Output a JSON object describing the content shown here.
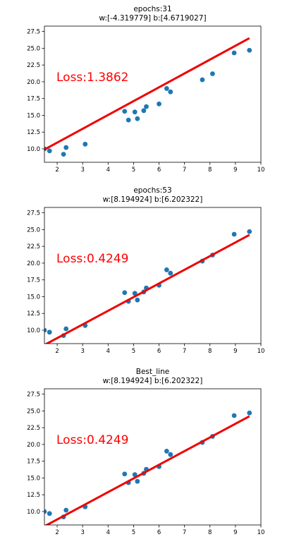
{
  "colors": {
    "points": "#1f77b4",
    "line": "#ee0000",
    "loss": "#ff0000",
    "axes": "#000000"
  },
  "chart_data": [
    {
      "type": "scatter",
      "title": "epochs:31",
      "subtitle": "w:[-4.319779] b:[4.6719027]",
      "loss_label": "Loss:1.3862",
      "xlim": [
        1.5,
        10
      ],
      "ylim": [
        8.0,
        28.3
      ],
      "xticks": [
        "2",
        "3",
        "4",
        "5",
        "6",
        "7",
        "8",
        "9",
        "10"
      ],
      "yticks": [
        "10.0",
        "12.5",
        "15.0",
        "17.5",
        "20.0",
        "22.5",
        "25.0",
        "27.5"
      ],
      "points": {
        "x": [
          1.5,
          1.7,
          2.25,
          2.35,
          3.1,
          4.65,
          4.8,
          5.05,
          5.15,
          5.4,
          5.5,
          6.0,
          6.3,
          6.45,
          7.7,
          8.1,
          8.95,
          9.55
        ],
        "y": [
          10.0,
          9.7,
          9.2,
          10.2,
          10.7,
          15.6,
          14.3,
          15.5,
          14.5,
          15.7,
          16.3,
          16.7,
          19.0,
          18.5,
          20.3,
          21.2,
          24.3,
          24.7
        ]
      },
      "line": {
        "x": [
          1.5,
          9.55
        ],
        "y": [
          9.9,
          26.5
        ]
      }
    },
    {
      "type": "scatter",
      "title": "epochs:53",
      "subtitle": "w:[8.194924] b:[6.202322]",
      "loss_label": "Loss:0.4249",
      "xlim": [
        1.5,
        10
      ],
      "ylim": [
        8.0,
        28.3
      ],
      "xticks": [
        "2",
        "3",
        "4",
        "5",
        "6",
        "7",
        "8",
        "9",
        "10"
      ],
      "yticks": [
        "10.0",
        "12.5",
        "15.0",
        "17.5",
        "20.0",
        "22.5",
        "25.0",
        "27.5"
      ],
      "points": {
        "x": [
          1.5,
          1.7,
          2.25,
          2.35,
          3.1,
          4.65,
          4.8,
          5.05,
          5.15,
          5.4,
          5.5,
          6.0,
          6.3,
          6.45,
          7.7,
          8.1,
          8.95,
          9.55
        ],
        "y": [
          10.0,
          9.7,
          9.2,
          10.2,
          10.7,
          15.6,
          14.3,
          15.5,
          14.5,
          15.7,
          16.3,
          16.7,
          19.0,
          18.5,
          20.3,
          21.2,
          24.3,
          24.7
        ]
      },
      "line": {
        "x": [
          1.5,
          9.55
        ],
        "y": [
          7.8,
          24.2
        ]
      }
    },
    {
      "type": "scatter",
      "title": "Best_line",
      "subtitle": "w:[8.194924] b:[6.202322]",
      "loss_label": "Loss:0.4249",
      "xlim": [
        1.5,
        10
      ],
      "ylim": [
        8.0,
        28.3
      ],
      "xticks": [
        "2",
        "3",
        "4",
        "5",
        "6",
        "7",
        "8",
        "9",
        "10"
      ],
      "yticks": [
        "10.0",
        "12.5",
        "15.0",
        "17.5",
        "20.0",
        "22.5",
        "25.0",
        "27.5"
      ],
      "points": {
        "x": [
          1.5,
          1.7,
          2.25,
          2.35,
          3.1,
          4.65,
          4.8,
          5.05,
          5.15,
          5.4,
          5.5,
          6.0,
          6.3,
          6.45,
          7.7,
          8.1,
          8.95,
          9.55
        ],
        "y": [
          10.0,
          9.7,
          9.2,
          10.2,
          10.7,
          15.6,
          14.3,
          15.5,
          14.5,
          15.7,
          16.3,
          16.7,
          19.0,
          18.5,
          20.3,
          21.2,
          24.3,
          24.7
        ]
      },
      "line": {
        "x": [
          1.5,
          9.55
        ],
        "y": [
          7.8,
          24.2
        ]
      }
    }
  ]
}
